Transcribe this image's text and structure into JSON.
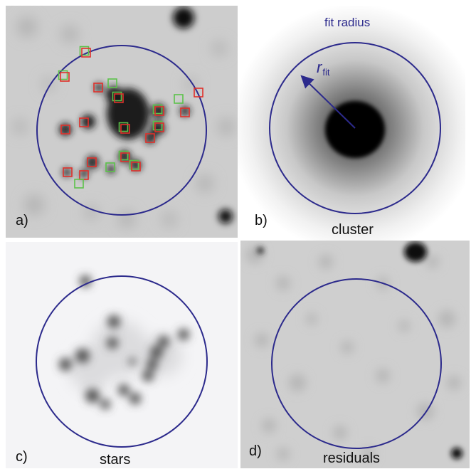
{
  "colors": {
    "circle": "#2c2a8c",
    "marker_red": "#e0302a",
    "marker_green": "#5cc24a",
    "background_grey": "#cfcfcf",
    "background_light": "#f3f3f5"
  },
  "panels": {
    "a": {
      "letter": "a)"
    },
    "b": {
      "letter": "b)",
      "caption": "cluster",
      "fit_label": "fit radius",
      "r_symbol": "r",
      "r_subscript": "fit"
    },
    "c": {
      "letter": "c)",
      "caption": "stars"
    },
    "d": {
      "letter": "d)",
      "caption": "residuals"
    }
  }
}
